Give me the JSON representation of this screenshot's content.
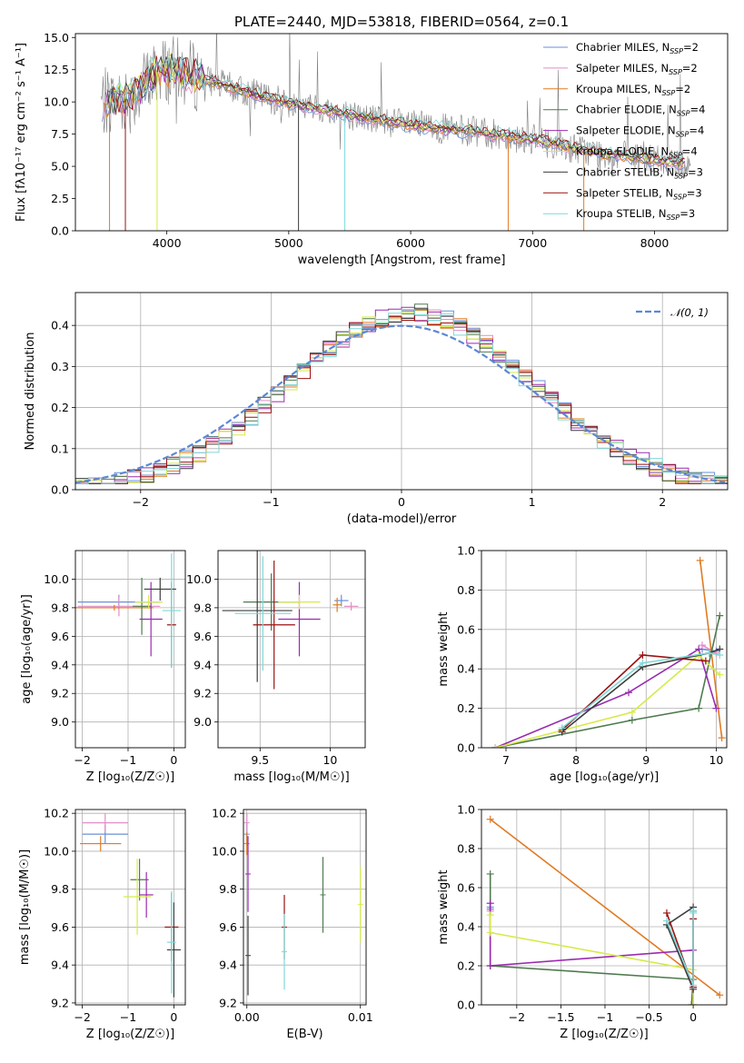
{
  "figure_title": "PLATE=2440, MJD=53818, FIBERID=0564, z=0.1",
  "colors": {
    "Chabrier MILES": "#6a8fd8",
    "Salpeter MILES": "#e38ec6",
    "Kroupa MILES": "#e07b24",
    "Chabrier ELODIE": "#4f7a4f",
    "Salpeter ELODIE": "#9a2bb0",
    "Kroupa ELODIE": "#d6ea4a",
    "Chabrier STELIB": "#3d3d3d",
    "Salpeter STELIB": "#9b1111",
    "Kroupa STELIB": "#7fd8d8",
    "data": "#808080",
    "normal": "#5b87d6"
  },
  "chart_data": [
    {
      "id": "spectrum",
      "type": "line",
      "xlabel": "wavelength [Angstrom, rest frame]",
      "ylabel": "Flux [fλ10⁻¹⁷ erg cm⁻² s⁻¹ A⁻¹]",
      "xlim": [
        3250,
        8600
      ],
      "ylim": [
        0,
        15.3
      ],
      "xticks": [
        4000,
        5000,
        6000,
        7000,
        8000
      ],
      "yticks": [
        0.0,
        2.5,
        5.0,
        7.5,
        10.0,
        12.5,
        15.0
      ],
      "legend_position": "upper-right",
      "continuum_knots": {
        "x": [
          3450,
          3700,
          3950,
          4200,
          4600,
          5000,
          5500,
          6000,
          6500,
          7000,
          7500,
          8000,
          8300
        ],
        "y": [
          9.9,
          10.3,
          12.6,
          12.1,
          10.9,
          9.9,
          9.0,
          8.2,
          7.7,
          7.1,
          6.1,
          5.5,
          5.2
        ]
      },
      "legend": [
        {
          "label": "Chabrier MILES, N",
          "sub": "SSP",
          "suffix": "=2"
        },
        {
          "label": "Salpeter MILES, N",
          "sub": "SSP",
          "suffix": "=2"
        },
        {
          "label": "Kroupa MILES, N",
          "sub": "SSP",
          "suffix": "=2"
        },
        {
          "label": "Chabrier ELODIE, N",
          "sub": "SSP",
          "suffix": "=4"
        },
        {
          "label": "Salpeter ELODIE, N",
          "sub": "SSP",
          "suffix": "=4"
        },
        {
          "label": "Kroupa ELODIE, N",
          "sub": "SSP",
          "suffix": "=4"
        },
        {
          "label": "Chabrier STELIB, N",
          "sub": "SSP",
          "suffix": "=3"
        },
        {
          "label": "Salpeter STELIB, N",
          "sub": "SSP",
          "suffix": "=3"
        },
        {
          "label": "Kroupa STELIB, N",
          "sub": "SSP",
          "suffix": "=3"
        }
      ]
    },
    {
      "id": "residuals",
      "type": "line",
      "xlabel": "(data-model)/error",
      "ylabel": "Normed distribution",
      "xlim": [
        -2.5,
        2.5
      ],
      "ylim": [
        0,
        0.48
      ],
      "xticks": [
        -2,
        -1,
        0,
        1,
        2
      ],
      "yticks": [
        0.0,
        0.1,
        0.2,
        0.3,
        0.4
      ],
      "grid": true,
      "legend_label": "𝒩(0, 1)",
      "legend_position": "upper-right"
    },
    {
      "id": "age_vs_Z",
      "type": "scatter",
      "xlabel": "Z [log₁₀(Z/Z☉)]",
      "ylabel": "age  [log₁₀(age/yr)]",
      "xlim": [
        -2.15,
        0.25
      ],
      "ylim": [
        8.82,
        10.2
      ],
      "xticks": [
        -2,
        -1,
        0
      ],
      "yticks": [
        9.0,
        9.2,
        9.4,
        9.6,
        9.8,
        10.0
      ],
      "grid": true,
      "points": [
        {
          "model": "Chabrier MILES",
          "x": -1.2,
          "y": 9.84,
          "xerr": 0.9,
          "yerr": 0.05
        },
        {
          "model": "Salpeter MILES",
          "x": -1.2,
          "y": 9.81,
          "xerr": 0.9,
          "yerr": 0.07
        },
        {
          "model": "Kroupa MILES",
          "x": -1.3,
          "y": 9.8,
          "xerr": 0.85,
          "yerr": 0.02
        },
        {
          "model": "Chabrier ELODIE",
          "x": -0.7,
          "y": 9.81,
          "xerr": 0.2,
          "yerr": 0.2
        },
        {
          "model": "Salpeter ELODIE",
          "x": -0.5,
          "y": 9.72,
          "xerr": 0.25,
          "yerr": 0.26
        },
        {
          "model": "Kroupa ELODIE",
          "x": -0.55,
          "y": 9.84,
          "xerr": 0.3,
          "yerr": 0.05
        },
        {
          "model": "Chabrier STELIB",
          "x": -0.3,
          "y": 9.93,
          "xerr": 0.35,
          "yerr": 0.08
        },
        {
          "model": "Salpeter STELIB",
          "x": -0.05,
          "y": 9.68,
          "xerr": 0.1,
          "yerr": 0.3
        },
        {
          "model": "Kroupa STELIB",
          "x": -0.05,
          "y": 9.78,
          "xerr": 0.2,
          "yerr": 0.4
        }
      ]
    },
    {
      "id": "age_vs_mass",
      "type": "scatter",
      "xlabel": "mass [log₁₀(M/M☉)]",
      "ylabel": "",
      "xlim": [
        9.2,
        10.25
      ],
      "ylim": [
        8.82,
        10.2
      ],
      "xticks": [
        9.5,
        10.0
      ],
      "yticks": [
        9.0,
        9.2,
        9.4,
        9.6,
        9.8,
        10.0
      ],
      "grid": true,
      "points": [
        {
          "model": "Chabrier MILES",
          "x": 10.08,
          "y": 9.85,
          "xerr": 0.05,
          "yerr": 0.04
        },
        {
          "model": "Salpeter MILES",
          "x": 10.15,
          "y": 9.81,
          "xerr": 0.05,
          "yerr": 0.03
        },
        {
          "model": "Kroupa MILES",
          "x": 10.05,
          "y": 9.82,
          "xerr": 0.03,
          "yerr": 0.05
        },
        {
          "model": "Chabrier ELODIE",
          "x": 9.58,
          "y": 9.84,
          "xerr": 0.2,
          "yerr": 0.2
        },
        {
          "model": "Salpeter ELODIE",
          "x": 9.78,
          "y": 9.72,
          "xerr": 0.15,
          "yerr": 0.26
        },
        {
          "model": "Kroupa ELODIE",
          "x": 9.78,
          "y": 9.84,
          "xerr": 0.15,
          "yerr": 0.05
        },
        {
          "model": "Chabrier STELIB",
          "x": 9.48,
          "y": 9.78,
          "xerr": 0.25,
          "yerr": 0.5
        },
        {
          "model": "Salpeter STELIB",
          "x": 9.6,
          "y": 9.68,
          "xerr": 0.15,
          "yerr": 0.45
        },
        {
          "model": "Kroupa STELIB",
          "x": 9.52,
          "y": 9.76,
          "xerr": 0.2,
          "yerr": 0.4
        }
      ]
    },
    {
      "id": "mass_weight_vs_age",
      "type": "line",
      "xlabel": "age  [log₁₀(age/yr)]",
      "ylabel": "mass weight",
      "xlim": [
        6.65,
        10.15
      ],
      "ylim": [
        0,
        1.0
      ],
      "xticks": [
        7,
        8,
        9,
        10
      ],
      "yticks": [
        0.0,
        0.2,
        0.4,
        0.6,
        0.8,
        1.0
      ],
      "grid": true,
      "series": [
        {
          "model": "Chabrier MILES",
          "x": [
            9.8,
            10.0
          ],
          "y": [
            0.5,
            0.49
          ]
        },
        {
          "model": "Salpeter MILES",
          "x": [
            9.8,
            10.0
          ],
          "y": [
            0.52,
            0.48
          ]
        },
        {
          "model": "Kroupa MILES",
          "x": [
            9.77,
            10.08
          ],
          "y": [
            0.95,
            0.05
          ]
        },
        {
          "model": "Chabrier ELODIE",
          "x": [
            6.85,
            8.8,
            9.75,
            10.05
          ],
          "y": [
            0.0,
            0.14,
            0.2,
            0.67
          ]
        },
        {
          "model": "Salpeter ELODIE",
          "x": [
            6.85,
            8.75,
            9.75,
            10.0
          ],
          "y": [
            0.0,
            0.28,
            0.5,
            0.2
          ]
        },
        {
          "model": "Kroupa ELODIE",
          "x": [
            6.85,
            8.8,
            9.75,
            10.05
          ],
          "y": [
            0.0,
            0.18,
            0.47,
            0.37
          ]
        },
        {
          "model": "Chabrier STELIB",
          "x": [
            7.8,
            8.95,
            9.9,
            10.05
          ],
          "y": [
            0.08,
            0.41,
            0.48,
            0.5
          ]
        },
        {
          "model": "Salpeter STELIB",
          "x": [
            7.8,
            8.95,
            9.85
          ],
          "y": [
            0.09,
            0.47,
            0.44
          ]
        },
        {
          "model": "Kroupa STELIB",
          "x": [
            7.8,
            8.95,
            9.9,
            10.05
          ],
          "y": [
            0.1,
            0.43,
            0.48,
            0.47
          ]
        }
      ]
    },
    {
      "id": "mass_vs_Z",
      "type": "scatter",
      "xlabel": "Z [log₁₀(Z/Z☉)]",
      "ylabel": "mass [log₁₀(M/M☉)]",
      "xlim": [
        -2.15,
        0.25
      ],
      "ylim": [
        9.19,
        10.22
      ],
      "xticks": [
        -2,
        -1,
        0
      ],
      "yticks": [
        9.2,
        9.4,
        9.6,
        9.8,
        10.0,
        10.2
      ],
      "grid": true,
      "points": [
        {
          "model": "Chabrier MILES",
          "x": -1.5,
          "y": 10.09,
          "xerr": 0.5,
          "yerr": 0.05
        },
        {
          "model": "Salpeter MILES",
          "x": -1.5,
          "y": 10.15,
          "xerr": 0.5,
          "yerr": 0.05
        },
        {
          "model": "Kroupa MILES",
          "x": -1.6,
          "y": 10.04,
          "xerr": 0.45,
          "yerr": 0.04
        },
        {
          "model": "Chabrier ELODIE",
          "x": -0.75,
          "y": 9.85,
          "xerr": 0.2,
          "yerr": 0.11
        },
        {
          "model": "Salpeter ELODIE",
          "x": -0.6,
          "y": 9.77,
          "xerr": 0.15,
          "yerr": 0.12
        },
        {
          "model": "Kroupa ELODIE",
          "x": -0.8,
          "y": 9.76,
          "xerr": 0.3,
          "yerr": 0.2
        },
        {
          "model": "Chabrier STELIB",
          "x": 0.0,
          "y": 9.48,
          "xerr": 0.15,
          "yerr": 0.25
        },
        {
          "model": "Salpeter STELIB",
          "x": -0.05,
          "y": 9.6,
          "xerr": 0.15,
          "yerr": 0.18
        },
        {
          "model": "Kroupa STELIB",
          "x": -0.05,
          "y": 9.52,
          "xerr": 0.1,
          "yerr": 0.27
        }
      ]
    },
    {
      "id": "mass_vs_EBV",
      "type": "scatter",
      "xlabel": "E(B-V)",
      "ylabel": "",
      "xlim": [
        -0.0003,
        0.0105
      ],
      "ylim": [
        9.19,
        10.22
      ],
      "xticks": [
        0.0,
        0.01
      ],
      "xticklabels": [
        "0.00",
        "0.01"
      ],
      "yticks": [
        9.2,
        9.4,
        9.6,
        9.8,
        10.0,
        10.2
      ],
      "grid": true,
      "points": [
        {
          "model": "Chabrier MILES",
          "x": 0.0,
          "y": 10.09,
          "yerr": 0.06
        },
        {
          "model": "Salpeter MILES",
          "x": 0.0,
          "y": 10.15,
          "yerr": 0.05
        },
        {
          "model": "Kroupa MILES",
          "x": 0.0,
          "y": 10.04,
          "yerr": 0.06
        },
        {
          "model": "Chabrier ELODIE",
          "x": 0.0067,
          "y": 9.77,
          "yerr": 0.2
        },
        {
          "model": "Salpeter ELODIE",
          "x": 0.0001,
          "y": 9.88,
          "yerr": 0.2
        },
        {
          "model": "Kroupa ELODIE",
          "x": 0.01,
          "y": 9.72,
          "yerr": 0.2
        },
        {
          "model": "Chabrier STELIB",
          "x": 0.0001,
          "y": 9.45,
          "yerr": 0.21
        },
        {
          "model": "Salpeter STELIB",
          "x": 0.0033,
          "y": 9.6,
          "yerr": 0.17
        },
        {
          "model": "Kroupa STELIB",
          "x": 0.0033,
          "y": 9.47,
          "yerr": 0.2
        }
      ]
    },
    {
      "id": "mass_weight_vs_Z",
      "type": "line",
      "xlabel": "Z [log₁₀(Z/Z☉)]",
      "ylabel": "mass weight",
      "xlim": [
        -2.4,
        0.38
      ],
      "ylim": [
        0,
        1.0
      ],
      "xticks": [
        -2.0,
        -1.5,
        -1.0,
        -0.5,
        0.0
      ],
      "yticks": [
        0.0,
        0.2,
        0.4,
        0.6,
        0.8,
        1.0
      ],
      "grid": true,
      "series": [
        {
          "model": "Chabrier MILES",
          "x": [
            -2.3,
            -2.3
          ],
          "y": [
            0.5,
            0.49
          ]
        },
        {
          "model": "Salpeter MILES",
          "x": [
            -2.3,
            -2.3
          ],
          "y": [
            0.52,
            0.48
          ]
        },
        {
          "model": "Kroupa MILES",
          "x": [
            -2.3,
            0.3
          ],
          "y": [
            0.95,
            0.05
          ]
        },
        {
          "model": "Chabrier ELODIE",
          "x": [
            -2.3,
            -2.3,
            0.0,
            -0.02
          ],
          "y": [
            0.67,
            0.2,
            0.13,
            0.0
          ]
        },
        {
          "model": "Salpeter ELODIE",
          "x": [
            -2.3,
            -2.3,
            0.0,
            0.0
          ],
          "y": [
            0.52,
            0.2,
            0.28,
            0.0
          ]
        },
        {
          "model": "Kroupa ELODIE",
          "x": [
            -2.3,
            -2.3,
            0.0,
            0.0
          ],
          "y": [
            0.46,
            0.37,
            0.18,
            0.0
          ]
        },
        {
          "model": "Chabrier STELIB",
          "x": [
            0.0,
            -0.3,
            0.0,
            0.0
          ],
          "y": [
            0.5,
            0.41,
            0.08,
            0.48
          ]
        },
        {
          "model": "Salpeter STELIB",
          "x": [
            -0.3,
            0.0,
            0.0
          ],
          "y": [
            0.47,
            0.09,
            0.44
          ]
        },
        {
          "model": "Kroupa STELIB",
          "x": [
            -0.3,
            0.0,
            0.0,
            0.0
          ],
          "y": [
            0.43,
            0.1,
            0.48,
            0.47
          ]
        }
      ]
    }
  ]
}
